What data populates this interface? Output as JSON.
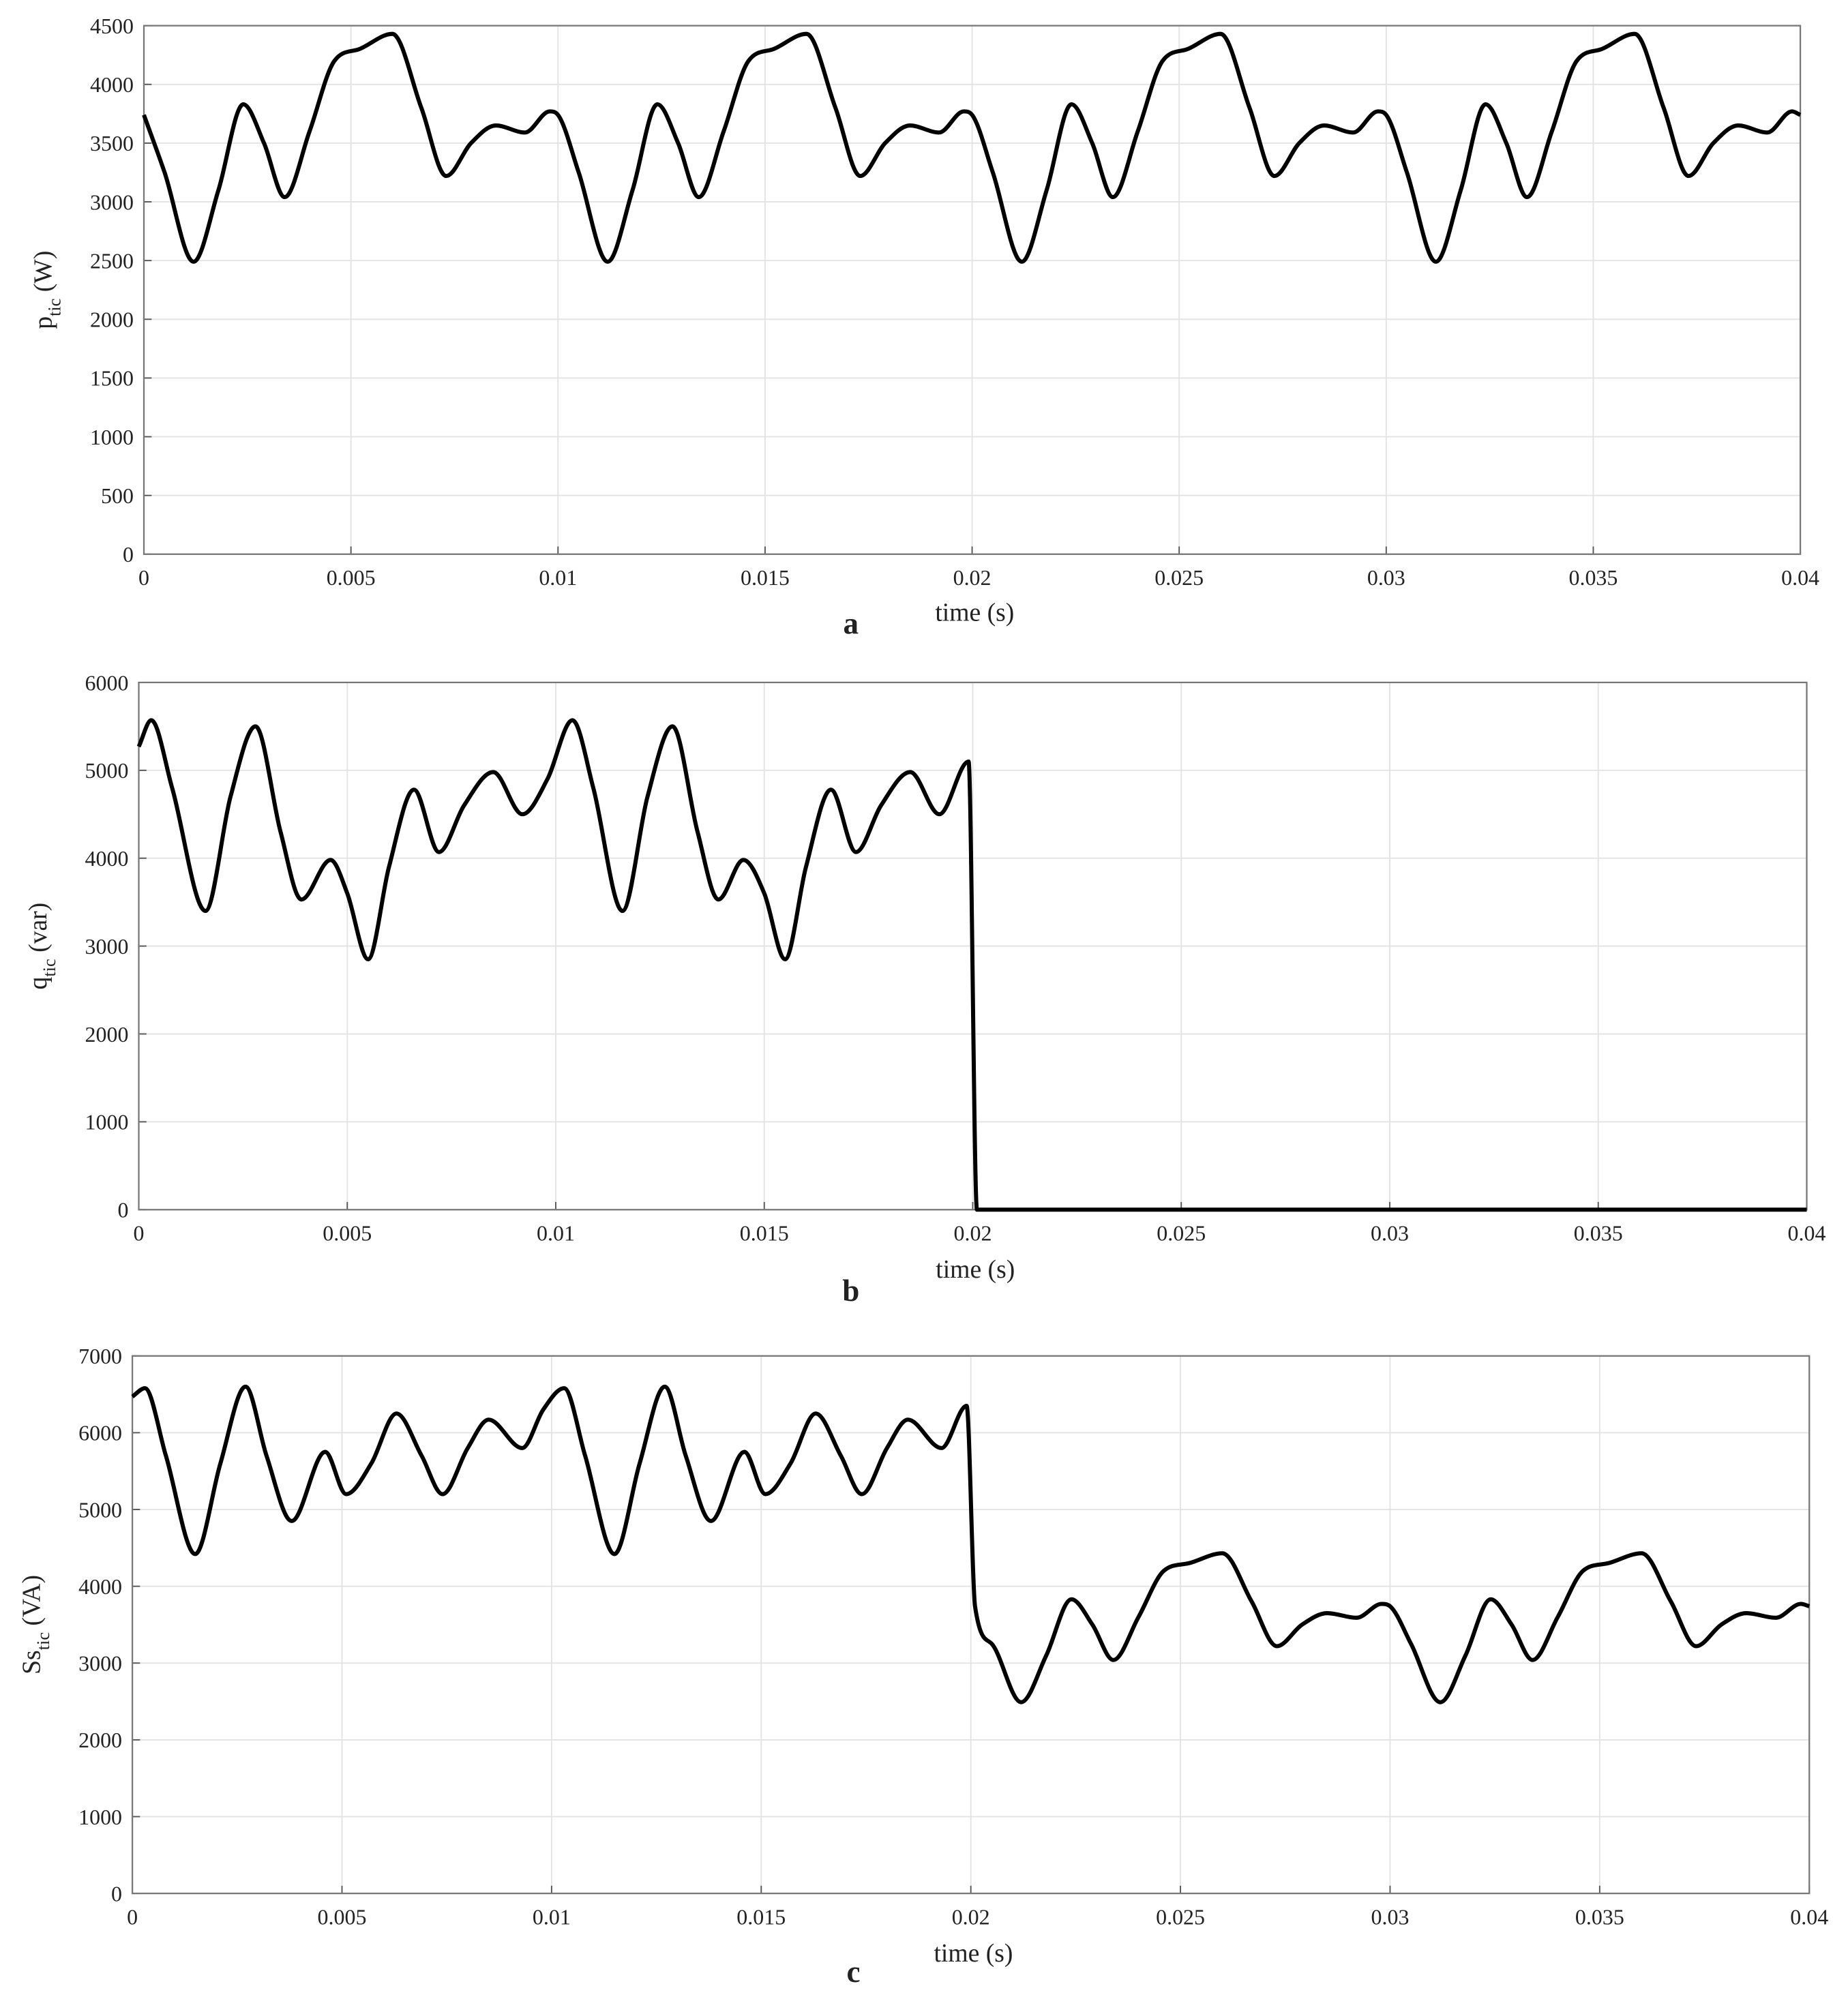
{
  "chart_data": [
    {
      "type": "line",
      "panel_label": "a",
      "xlabel": "time (s)",
      "ylabel": {
        "text": "p",
        "subscript": "tic",
        "unit": "(W)"
      },
      "xlim": [
        0,
        0.04
      ],
      "xticks": [
        0,
        0.005,
        0.01,
        0.015,
        0.02,
        0.025,
        0.03,
        0.035,
        0.04
      ],
      "ylim": [
        0,
        4500
      ],
      "yticks": [
        0,
        500,
        1000,
        1500,
        2000,
        2500,
        3000,
        3500,
        4000,
        4500
      ],
      "grid": true,
      "series": [
        {
          "color": "#000000",
          "x": [
            0,
            0.0005,
            0.0012,
            0.0018,
            0.0024,
            0.0029,
            0.0034,
            0.004,
            0.0046,
            0.0052,
            0.006,
            0.0067,
            0.0073,
            0.0079,
            0.0085,
            0.0092,
            0.0098,
            0.01,
            0.0105,
            0.0112,
            0.0118,
            0.0124,
            0.0129,
            0.0134,
            0.014,
            0.0146,
            0.0152,
            0.016,
            0.0167,
            0.0173,
            0.0179,
            0.0185,
            0.0192,
            0.0198,
            0.02,
            0.0205,
            0.0212,
            0.0218,
            0.0224,
            0.0229,
            0.0234,
            0.024,
            0.0246,
            0.0252,
            0.026,
            0.0267,
            0.0273,
            0.0279,
            0.0285,
            0.0292,
            0.0298,
            0.03,
            0.0305,
            0.0312,
            0.0318,
            0.0324,
            0.0329,
            0.0334,
            0.034,
            0.0346,
            0.0352,
            0.036,
            0.0367,
            0.0373,
            0.0379,
            0.0385,
            0.0392,
            0.0398,
            0.04
          ],
          "values": [
            3740,
            3250,
            2490,
            3100,
            3830,
            3500,
            3040,
            3600,
            4200,
            4300,
            4430,
            3800,
            3220,
            3500,
            3650,
            3590,
            3770,
            3740,
            3250,
            2490,
            3100,
            3830,
            3500,
            3040,
            3600,
            4200,
            4300,
            4430,
            3800,
            3220,
            3500,
            3650,
            3590,
            3770,
            3740,
            3250,
            2490,
            3100,
            3830,
            3500,
            3040,
            3600,
            4200,
            4300,
            4430,
            3800,
            3220,
            3500,
            3650,
            3590,
            3770,
            3740,
            3250,
            2490,
            3100,
            3830,
            3500,
            3040,
            3600,
            4200,
            4300,
            4430,
            3800,
            3220,
            3500,
            3650,
            3590,
            3770,
            3740
          ]
        }
      ]
    },
    {
      "type": "line",
      "panel_label": "b",
      "xlabel": "time (s)",
      "ylabel": {
        "text": "q",
        "subscript": "tic",
        "unit": "(var)"
      },
      "xlim": [
        0,
        0.04
      ],
      "xticks": [
        0,
        0.005,
        0.01,
        0.015,
        0.02,
        0.025,
        0.03,
        0.035,
        0.04
      ],
      "ylim": [
        0,
        6000
      ],
      "yticks": [
        0,
        1000,
        2000,
        3000,
        4000,
        5000,
        6000
      ],
      "grid": true,
      "series": [
        {
          "color": "#000000",
          "x": [
            0,
            0.0003,
            0.0008,
            0.0016,
            0.0022,
            0.0028,
            0.0034,
            0.0039,
            0.0046,
            0.005,
            0.0055,
            0.006,
            0.0066,
            0.0072,
            0.0078,
            0.0085,
            0.0092,
            0.0098,
            0.0104,
            0.0109,
            0.0116,
            0.0122,
            0.0128,
            0.0134,
            0.0139,
            0.0145,
            0.015,
            0.0155,
            0.016,
            0.0166,
            0.0172,
            0.0178,
            0.0185,
            0.0192,
            0.0199,
            0.0201,
            0.04
          ],
          "values": [
            5270,
            5570,
            4800,
            3400,
            4700,
            5500,
            4300,
            3530,
            3980,
            3600,
            2850,
            3900,
            4780,
            4070,
            4600,
            4980,
            4500,
            4900,
            5570,
            4800,
            3400,
            4700,
            5500,
            4300,
            3530,
            3980,
            3600,
            2850,
            3900,
            4780,
            4070,
            4600,
            4980,
            4500,
            5100,
            0,
            0
          ]
        }
      ]
    },
    {
      "type": "line",
      "panel_label": "c",
      "xlabel": "time (s)",
      "ylabel": {
        "text": "Ss",
        "subscript": "tic",
        "unit": "(VA)"
      },
      "xlim": [
        0,
        0.04
      ],
      "xticks": [
        0,
        0.005,
        0.01,
        0.015,
        0.02,
        0.025,
        0.03,
        0.035,
        0.04
      ],
      "ylim": [
        0,
        7000
      ],
      "yticks": [
        0,
        1000,
        2000,
        3000,
        4000,
        5000,
        6000,
        7000
      ],
      "grid": true,
      "series": [
        {
          "color": "#000000",
          "x": [
            0,
            0.0003,
            0.0008,
            0.0015,
            0.0021,
            0.0027,
            0.0032,
            0.0038,
            0.0046,
            0.0051,
            0.0057,
            0.0063,
            0.0069,
            0.0074,
            0.008,
            0.0085,
            0.0093,
            0.0098,
            0.0103,
            0.0108,
            0.0115,
            0.0121,
            0.0127,
            0.0132,
            0.0138,
            0.0146,
            0.0151,
            0.0157,
            0.0163,
            0.0169,
            0.0174,
            0.018,
            0.0185,
            0.0193,
            0.0199,
            0.0201,
            0.0205,
            0.0212,
            0.0218,
            0.0224,
            0.0229,
            0.0234,
            0.024,
            0.0246,
            0.0252,
            0.026,
            0.0267,
            0.0273,
            0.0279,
            0.0285,
            0.0292,
            0.0298,
            0.03,
            0.0305,
            0.0312,
            0.0318,
            0.0324,
            0.0329,
            0.0334,
            0.034,
            0.0346,
            0.0352,
            0.036,
            0.0367,
            0.0373,
            0.0379,
            0.0385,
            0.0392,
            0.0398,
            0.04
          ],
          "values": [
            6470,
            6580,
            5700,
            4420,
            5600,
            6600,
            5700,
            4850,
            5750,
            5200,
            5600,
            6250,
            5700,
            5200,
            5800,
            6170,
            5800,
            6300,
            6580,
            5700,
            4420,
            5600,
            6600,
            5700,
            4850,
            5750,
            5200,
            5600,
            6250,
            5700,
            5200,
            5800,
            6170,
            5800,
            6350,
            3740,
            3250,
            2490,
            3100,
            3830,
            3500,
            3040,
            3600,
            4200,
            4300,
            4430,
            3800,
            3220,
            3500,
            3650,
            3590,
            3770,
            3740,
            3250,
            2490,
            3100,
            3830,
            3500,
            3040,
            3600,
            4200,
            4300,
            4430,
            3800,
            3220,
            3500,
            3650,
            3590,
            3770,
            3740
          ]
        }
      ]
    }
  ]
}
